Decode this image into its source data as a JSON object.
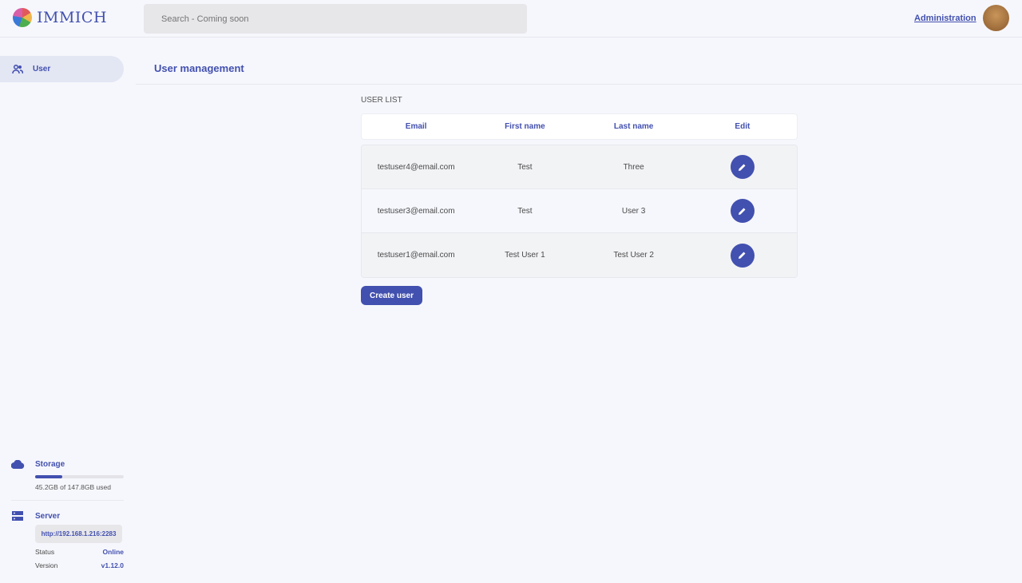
{
  "header": {
    "app_name": "IMMICH",
    "search_placeholder": "Search - Coming soon",
    "admin_link": "Administration"
  },
  "sidebar": {
    "items": [
      {
        "label": "User",
        "icon": "users-icon"
      }
    ],
    "storage": {
      "label": "Storage",
      "used_text": "45.2GB of 147.8GB used",
      "used_fraction": 0.306
    },
    "server": {
      "label": "Server",
      "url": "http://192.168.1.216:2283",
      "status_label": "Status",
      "status_value": "Online",
      "version_label": "Version",
      "version_value": "v1.12.0"
    }
  },
  "main": {
    "title": "User management",
    "section_label": "USER LIST",
    "columns": [
      "Email",
      "First name",
      "Last name",
      "Edit"
    ],
    "rows": [
      {
        "email": "testuser4@email.com",
        "first": "Test",
        "last": "Three"
      },
      {
        "email": "testuser3@email.com",
        "first": "Test",
        "last": "User 3"
      },
      {
        "email": "testuser1@email.com",
        "first": "Test User 1",
        "last": "Test User 2"
      }
    ],
    "create_button": "Create user"
  },
  "colors": {
    "accent": "#4250af",
    "background": "#f6f7fc"
  }
}
